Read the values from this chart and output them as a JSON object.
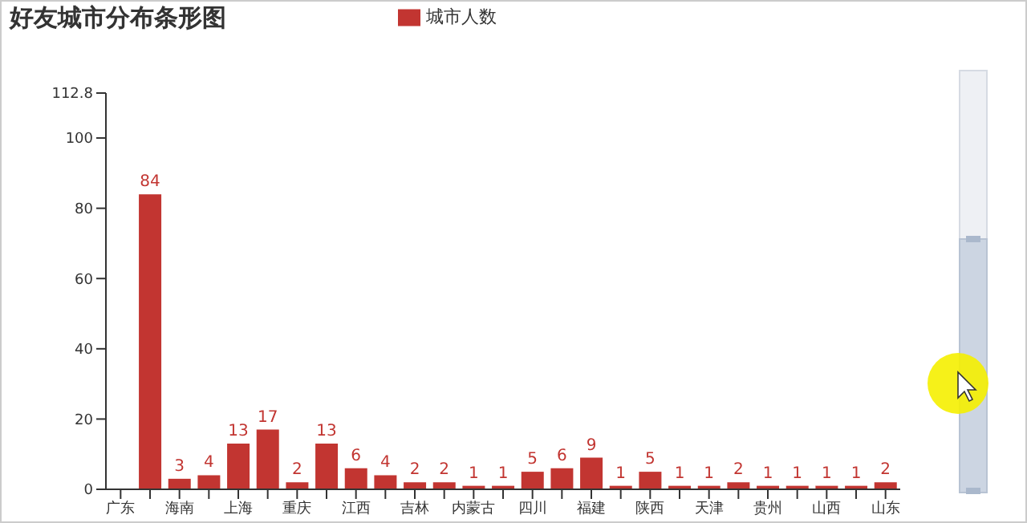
{
  "chart_data": {
    "type": "bar",
    "title": "好友城市分布条形图",
    "categories": [
      "广东",
      null,
      "海南",
      null,
      "上海",
      null,
      "重庆",
      null,
      "江西",
      null,
      "吉林",
      null,
      "内蒙古",
      null,
      "四川",
      null,
      "福建",
      null,
      "陕西",
      null,
      "天津",
      null,
      "贵州",
      null,
      "山西",
      null,
      "山东"
    ],
    "series": [
      {
        "name": "城市人数",
        "color": "#c23531",
        "values": [
          null,
          84,
          3,
          4,
          13,
          17,
          2,
          13,
          6,
          4,
          2,
          2,
          1,
          1,
          5,
          6,
          9,
          1,
          5,
          1,
          1,
          2,
          1,
          1,
          1,
          1,
          2
        ]
      }
    ],
    "ylim": [
      0,
      112.8
    ],
    "yticks": [
      0,
      20,
      40,
      60,
      80,
      100,
      112.8
    ],
    "data_labels": true,
    "legend": "top",
    "grid": false
  }
}
